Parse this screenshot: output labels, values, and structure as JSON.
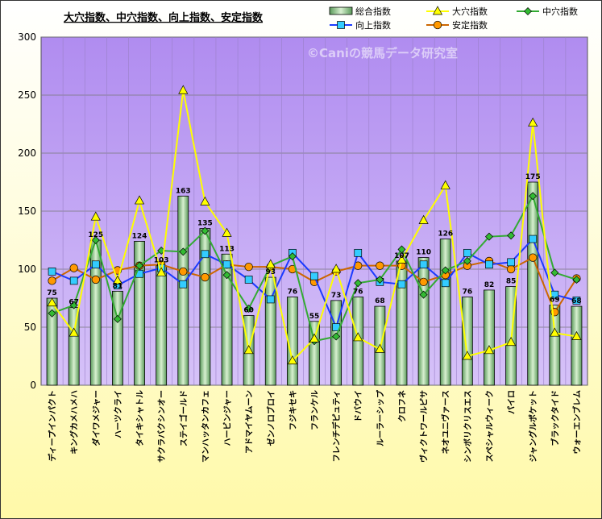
{
  "chart_data": {
    "type": "bar",
    "title": "大穴指数、中穴指数、向上指数、安定指数",
    "watermark": "©Caniの競馬データ研究室",
    "ylim": [
      0,
      300
    ],
    "yticks": [
      0,
      50,
      100,
      150,
      200,
      250,
      300
    ],
    "grid": true,
    "legend_position": "top-right",
    "categories": [
      "ディープインパクト",
      "キングカメハメハ",
      "ダイワメジャー",
      "ハーツクライ",
      "タイキシャトル",
      "サクラバクシンオー",
      "ステイゴールド",
      "マンハッタンカフェ",
      "ハービンジャー",
      "アドマイヤムーン",
      "ゼンノロブロイ",
      "フジキセキ",
      "フランケル",
      "フレンチデピュティ",
      "ドバウイ",
      "ルーラーシップ",
      "クロフネ",
      "ヴィクトワールピサ",
      "ネオユニヴァース",
      "シンボリクリスエス",
      "スペシャルウィーク",
      "パイロ",
      "ジャングルポケット",
      "ブラックタイド",
      "ウォーエンブレム"
    ],
    "series": [
      {
        "name": "総合指数",
        "kind": "bar",
        "color": "#90c890",
        "values": [
          75,
          67,
          125,
          81,
          124,
          103,
          163,
          135,
          113,
          60,
          93,
          76,
          55,
          73,
          76,
          68,
          107,
          110,
          126,
          76,
          82,
          85,
          175,
          69,
          68
        ]
      },
      {
        "name": "大穴指数",
        "kind": "line",
        "color": "#ffff00",
        "marker": "triangle",
        "values": [
          71,
          45,
          145,
          90,
          159,
          97,
          254,
          158,
          131,
          30,
          104,
          21,
          40,
          100,
          41,
          31,
          108,
          142,
          172,
          25,
          30,
          37,
          226,
          45,
          42
        ]
      },
      {
        "name": "中穴指数",
        "kind": "line",
        "color": "#33aa33",
        "marker": "diamond",
        "values": [
          62,
          69,
          125,
          57,
          103,
          116,
          115,
          133,
          95,
          66,
          103,
          111,
          38,
          42,
          88,
          91,
          117,
          78,
          99,
          107,
          128,
          129,
          163,
          97,
          91
        ]
      },
      {
        "name": "向上指数",
        "kind": "line",
        "color": "#1a3aff",
        "marker": "square",
        "values": [
          98,
          90,
          104,
          86,
          96,
          101,
          87,
          113,
          104,
          91,
          74,
          114,
          94,
          50,
          114,
          89,
          87,
          104,
          88,
          114,
          104,
          106,
          126,
          78,
          73
        ]
      },
      {
        "name": "安定指数",
        "kind": "line",
        "color": "#cc6600",
        "marker": "circle",
        "values": [
          90,
          101,
          91,
          99,
          103,
          104,
          98,
          93,
          104,
          102,
          102,
          100,
          89,
          98,
          103,
          103,
          103,
          89,
          95,
          103,
          107,
          100,
          110,
          63,
          92
        ]
      }
    ]
  }
}
